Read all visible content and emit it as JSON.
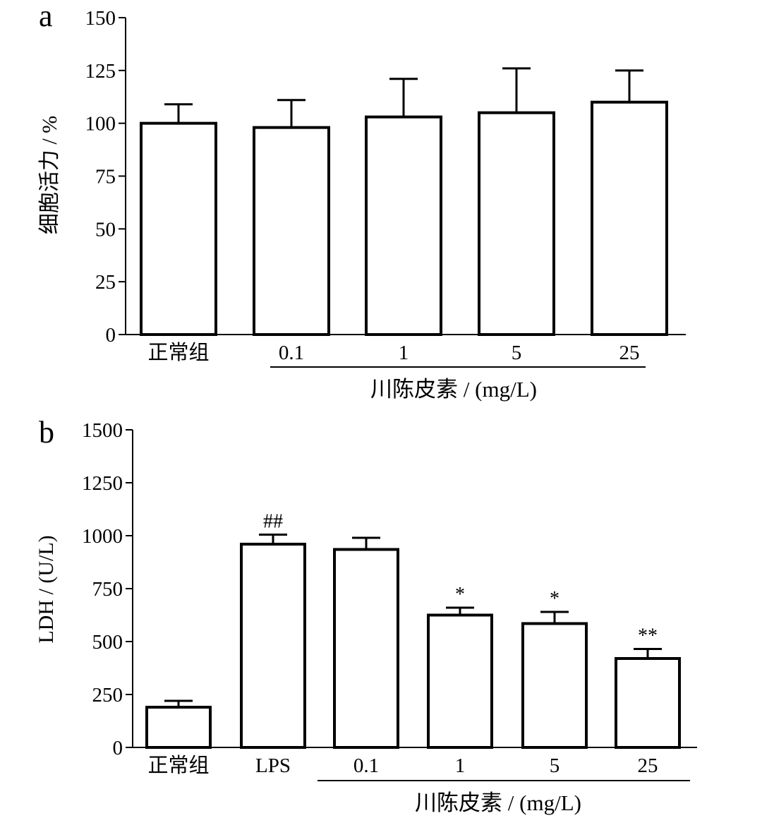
{
  "chart_data": [
    {
      "panel": "a",
      "type": "bar",
      "ylabel": "细胞活力 / %",
      "ylim": [
        0,
        150
      ],
      "yticks": [
        0,
        25,
        50,
        75,
        100,
        125,
        150
      ],
      "categories": [
        "正常组",
        "0.1",
        "1",
        "5",
        "25"
      ],
      "values": [
        100,
        98,
        103,
        105,
        110
      ],
      "errors": [
        9,
        13,
        18,
        21,
        15
      ],
      "annotations": [
        "",
        "",
        "",
        "",
        ""
      ],
      "group_label": "川陈皮素 / (mg/L)",
      "group_start_index": 1,
      "colors": {
        "bar_fill": "#ffffff",
        "bar_stroke": "#000000"
      },
      "grid": false
    },
    {
      "panel": "b",
      "type": "bar",
      "ylabel": "LDH / (U/L)",
      "ylim": [
        0,
        1500
      ],
      "yticks": [
        0,
        250,
        500,
        750,
        1000,
        1250,
        1500
      ],
      "categories": [
        "正常组",
        "LPS",
        "0.1",
        "1",
        "5",
        "25"
      ],
      "values": [
        190,
        960,
        935,
        625,
        585,
        420
      ],
      "errors": [
        30,
        45,
        55,
        35,
        55,
        45
      ],
      "annotations": [
        "",
        "##",
        "",
        "*",
        "*",
        "**"
      ],
      "group_label": "川陈皮素 / (mg/L)",
      "group_start_index": 2,
      "colors": {
        "bar_fill": "#ffffff",
        "bar_stroke": "#000000"
      },
      "grid": false
    }
  ]
}
